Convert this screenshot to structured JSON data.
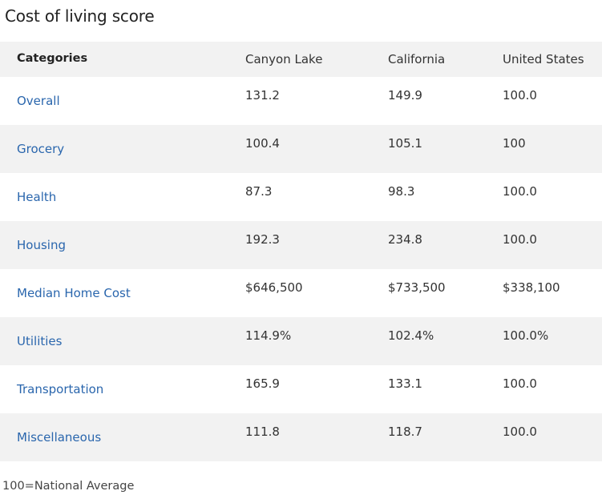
{
  "title": "Cost of living score",
  "table": {
    "headers": [
      "Categories",
      "Canyon Lake",
      "California",
      "United States"
    ],
    "rows": [
      {
        "category": "Overall",
        "canyon_lake": "131.2",
        "california": "149.9",
        "united_states": "100.0"
      },
      {
        "category": "Grocery",
        "canyon_lake": "100.4",
        "california": "105.1",
        "united_states": "100"
      },
      {
        "category": "Health",
        "canyon_lake": "87.3",
        "california": "98.3",
        "united_states": "100.0"
      },
      {
        "category": "Housing",
        "canyon_lake": "192.3",
        "california": "234.8",
        "united_states": "100.0"
      },
      {
        "category": "Median Home Cost",
        "canyon_lake": "$646,500",
        "california": "$733,500",
        "united_states": "$338,100"
      },
      {
        "category": "Utilities",
        "canyon_lake": "114.9%",
        "california": "102.4%",
        "united_states": "100.0%"
      },
      {
        "category": "Transportation",
        "canyon_lake": "165.9",
        "california": "133.1",
        "united_states": "100.0"
      },
      {
        "category": "Miscellaneous",
        "canyon_lake": "111.8",
        "california": "118.7",
        "united_states": "100.0"
      }
    ]
  },
  "footnote": "100=National Average",
  "colors": {
    "link": "#2a66ad",
    "row_shade": "#f2f2f2"
  }
}
